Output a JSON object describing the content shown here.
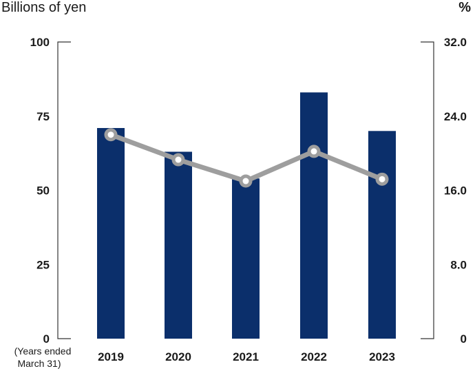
{
  "chart_data": {
    "type": "bar",
    "categories": [
      "2019",
      "2020",
      "2021",
      "2022",
      "2023"
    ],
    "series": [
      {
        "axis": "left",
        "type": "bar",
        "values": [
          71,
          63,
          54,
          83,
          70
        ],
        "color": "#0b2f6b"
      },
      {
        "axis": "right",
        "type": "line",
        "values": [
          22.0,
          19.3,
          17.0,
          20.2,
          17.2
        ],
        "color": "#9e9e9e"
      }
    ],
    "left_axis": {
      "label": "Billions of yen",
      "ylim": [
        0,
        100
      ],
      "ticks": [
        "0",
        "25",
        "50",
        "75",
        "100"
      ]
    },
    "right_axis": {
      "label": "%",
      "ylim": [
        0,
        32
      ],
      "ticks": [
        "0",
        "8.0",
        "16.0",
        "24.0",
        "32.0"
      ]
    },
    "x_note_line1": "(Years ended",
    "x_note_line2": "March 31)",
    "grid": false
  }
}
